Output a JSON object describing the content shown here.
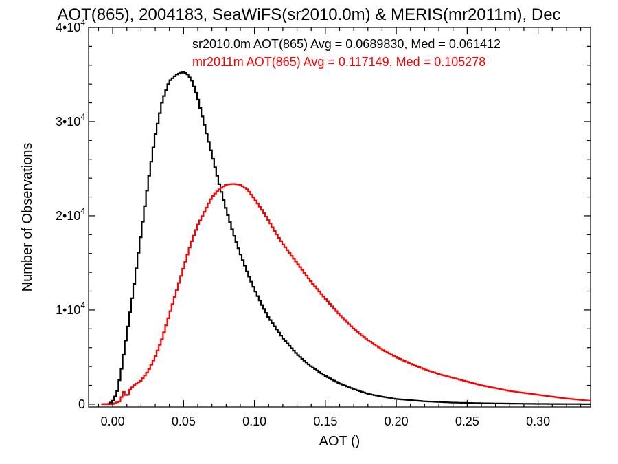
{
  "chart_data": {
    "type": "line",
    "title": "AOT(865), 2004183, SeaWiFS(sr2010.0m) & MERIS(mr2011m), Dec",
    "xlabel": "AOT ()",
    "ylabel": "Number of Observations",
    "xlim": [
      -0.017,
      0.337
    ],
    "ylim": [
      -300,
      40000
    ],
    "x_ticks": [
      0.0,
      0.05,
      0.1,
      0.15,
      0.2,
      0.25,
      0.3
    ],
    "x_tick_labels": [
      "0.00",
      "0.05",
      "0.10",
      "0.15",
      "0.20",
      "0.25",
      "0.30"
    ],
    "y_ticks": [
      0,
      10000,
      20000,
      30000,
      40000
    ],
    "y_tick_labels": [
      {
        "base": "0",
        "exp": ""
      },
      {
        "base": "1•10",
        "exp": "4"
      },
      {
        "base": "2•10",
        "exp": "4"
      },
      {
        "base": "3•10",
        "exp": "4"
      },
      {
        "base": "4•10",
        "exp": "4"
      }
    ],
    "grid": false,
    "legend_position": "top-right",
    "series": [
      {
        "name": "sr2010.0m",
        "color": "#000000",
        "legend": "sr2010.0m AOT(865) Avg = 0.0689830, Med = 0.061412",
        "x": [
          -0.008,
          -0.003,
          0.0,
          0.003,
          0.006,
          0.01,
          0.015,
          0.02,
          0.025,
          0.03,
          0.035,
          0.04,
          0.045,
          0.05,
          0.053,
          0.056,
          0.06,
          0.065,
          0.07,
          0.075,
          0.08,
          0.085,
          0.09,
          0.095,
          0.1,
          0.105,
          0.11,
          0.12,
          0.13,
          0.14,
          0.15,
          0.16,
          0.17,
          0.18,
          0.19,
          0.2,
          0.22,
          0.24,
          0.26,
          0.28,
          0.3,
          0.32,
          0.337
        ],
        "y": [
          0,
          0,
          300,
          1200,
          3500,
          7500,
          12500,
          18000,
          23500,
          28500,
          32200,
          34300,
          35000,
          35300,
          35000,
          34300,
          32500,
          29500,
          26500,
          23500,
          20700,
          18200,
          16000,
          14000,
          12200,
          10600,
          9200,
          7000,
          5300,
          4000,
          3000,
          2200,
          1600,
          1100,
          800,
          550,
          300,
          170,
          100,
          60,
          30,
          15,
          8
        ]
      },
      {
        "name": "mr2011m",
        "color": "#ff0000",
        "legend": "mr2011m AOT(865) Avg = 0.117149, Med = 0.105278",
        "x": [
          -0.008,
          0.0,
          0.005,
          0.008,
          0.01,
          0.012,
          0.015,
          0.02,
          0.025,
          0.03,
          0.035,
          0.04,
          0.045,
          0.05,
          0.055,
          0.06,
          0.065,
          0.07,
          0.075,
          0.08,
          0.085,
          0.09,
          0.095,
          0.1,
          0.105,
          0.11,
          0.115,
          0.12,
          0.13,
          0.14,
          0.15,
          0.16,
          0.17,
          0.18,
          0.19,
          0.2,
          0.21,
          0.22,
          0.23,
          0.24,
          0.25,
          0.26,
          0.27,
          0.28,
          0.29,
          0.3,
          0.31,
          0.32,
          0.337
        ],
        "y": [
          0,
          0,
          300,
          1400,
          700,
          1500,
          2000,
          2500,
          3500,
          5000,
          7000,
          9500,
          12000,
          14500,
          17000,
          19000,
          20500,
          22000,
          22800,
          23300,
          23400,
          23300,
          22800,
          21800,
          20700,
          19500,
          18200,
          17000,
          15000,
          13000,
          11200,
          9500,
          8000,
          6800,
          5800,
          5000,
          4300,
          3700,
          3200,
          2800,
          2400,
          2000,
          1700,
          1400,
          1200,
          1000,
          800,
          600,
          350
        ]
      }
    ]
  }
}
